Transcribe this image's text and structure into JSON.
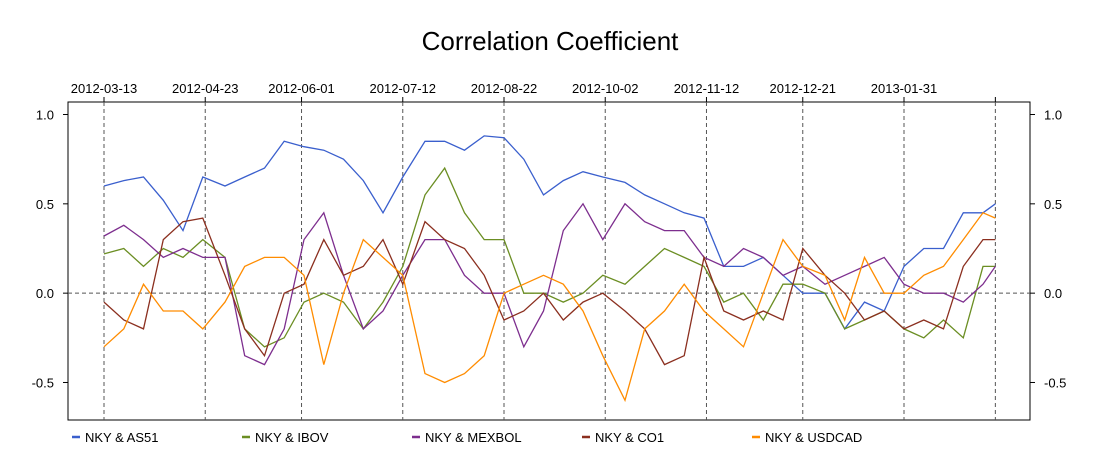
{
  "chart_data": {
    "type": "line",
    "title": "Correlation Coefficient",
    "xlabel": "",
    "ylabel": "",
    "x_unit": "days since 2012-03-13",
    "xlim": [
      -15,
      375
    ],
    "ylim": [
      -0.71,
      1.07
    ],
    "y_ticks": [
      1.0,
      0.5,
      0.0,
      -0.5
    ],
    "y_tick_labels": [
      "1.0",
      "0.5",
      "0.0",
      "-0.5"
    ],
    "x_ticks": [
      0,
      41,
      80,
      121,
      162,
      203,
      244,
      283,
      324,
      361
    ],
    "x_tick_labels": [
      "2012-03-13",
      "2012-04-23",
      "2012-06-01",
      "2012-07-12",
      "2012-08-22",
      "2012-10-02",
      "2012-11-12",
      "2012-12-21",
      "2013-01-31",
      ""
    ],
    "zero_line": true,
    "legend_position": "bottom",
    "x": [
      0,
      8,
      16,
      24,
      32,
      40,
      49,
      57,
      65,
      73,
      81,
      89,
      97,
      105,
      113,
      121,
      130,
      138,
      146,
      154,
      162,
      170,
      178,
      186,
      194,
      202,
      211,
      219,
      227,
      235,
      243,
      251,
      259,
      267,
      275,
      283,
      292,
      300,
      308,
      316,
      324,
      332,
      340,
      348,
      356,
      361
    ],
    "series": [
      {
        "name": "NKY  &  AS51",
        "color": "#3a5fcd",
        "values": [
          0.6,
          0.63,
          0.65,
          0.52,
          0.35,
          0.65,
          0.6,
          0.65,
          0.7,
          0.85,
          0.82,
          0.8,
          0.75,
          0.63,
          0.45,
          0.65,
          0.85,
          0.85,
          0.8,
          0.88,
          0.87,
          0.75,
          0.55,
          0.63,
          0.68,
          0.65,
          0.62,
          0.55,
          0.5,
          0.45,
          0.42,
          0.15,
          0.15,
          0.2,
          0.1,
          0.0,
          0.0,
          -0.2,
          -0.05,
          -0.1,
          0.15,
          0.25,
          0.25,
          0.45,
          0.45,
          0.5
        ]
      },
      {
        "name": "NKY  &  IBOV",
        "color": "#6b8e23",
        "values": [
          0.22,
          0.25,
          0.15,
          0.25,
          0.2,
          0.3,
          0.2,
          -0.2,
          -0.3,
          -0.25,
          -0.05,
          0.0,
          -0.05,
          -0.2,
          -0.05,
          0.15,
          0.55,
          0.7,
          0.45,
          0.3,
          0.3,
          0.0,
          0.0,
          -0.05,
          0.0,
          0.1,
          0.05,
          0.15,
          0.25,
          0.2,
          0.15,
          -0.05,
          0.0,
          -0.15,
          0.05,
          0.05,
          0.0,
          -0.2,
          -0.15,
          -0.1,
          -0.2,
          -0.25,
          -0.15,
          -0.25,
          0.15,
          0.15
        ]
      },
      {
        "name": "NKY  &  MEXBOL",
        "color": "#7d2e8e",
        "values": [
          0.32,
          0.38,
          0.3,
          0.2,
          0.25,
          0.2,
          0.2,
          -0.35,
          -0.4,
          -0.2,
          0.3,
          0.45,
          0.1,
          -0.2,
          -0.1,
          0.1,
          0.3,
          0.3,
          0.1,
          0.0,
          0.0,
          -0.3,
          -0.1,
          0.35,
          0.5,
          0.3,
          0.5,
          0.4,
          0.35,
          0.35,
          0.2,
          0.15,
          0.25,
          0.2,
          0.1,
          0.15,
          0.05,
          0.1,
          0.15,
          0.2,
          0.05,
          0.0,
          0.0,
          -0.05,
          0.05,
          0.15
        ]
      },
      {
        "name": "NKY  &  CO1",
        "color": "#8b2f1f",
        "values": [
          -0.05,
          -0.15,
          -0.2,
          0.3,
          0.4,
          0.42,
          0.1,
          -0.2,
          -0.35,
          0.0,
          0.05,
          0.3,
          0.1,
          0.15,
          0.3,
          0.05,
          0.4,
          0.3,
          0.25,
          0.1,
          -0.15,
          -0.1,
          0.0,
          -0.15,
          -0.05,
          0.0,
          -0.1,
          -0.2,
          -0.4,
          -0.35,
          0.2,
          -0.1,
          -0.15,
          -0.1,
          -0.15,
          0.25,
          0.1,
          0.0,
          -0.15,
          -0.1,
          -0.2,
          -0.15,
          -0.2,
          0.15,
          0.3,
          0.3
        ]
      },
      {
        "name": "NKY  &  USDCAD",
        "color": "#ff8c00",
        "values": [
          -0.3,
          -0.2,
          0.05,
          -0.1,
          -0.1,
          -0.2,
          -0.05,
          0.15,
          0.2,
          0.2,
          0.1,
          -0.4,
          0.0,
          0.3,
          0.2,
          0.1,
          -0.45,
          -0.5,
          -0.45,
          -0.35,
          0.0,
          0.05,
          0.1,
          0.05,
          -0.1,
          -0.35,
          -0.6,
          -0.2,
          -0.1,
          0.05,
          -0.1,
          -0.2,
          -0.3,
          0.0,
          0.3,
          0.15,
          0.1,
          -0.15,
          0.2,
          0.0,
          0.0,
          0.1,
          0.15,
          0.3,
          0.45,
          0.42
        ]
      }
    ]
  }
}
